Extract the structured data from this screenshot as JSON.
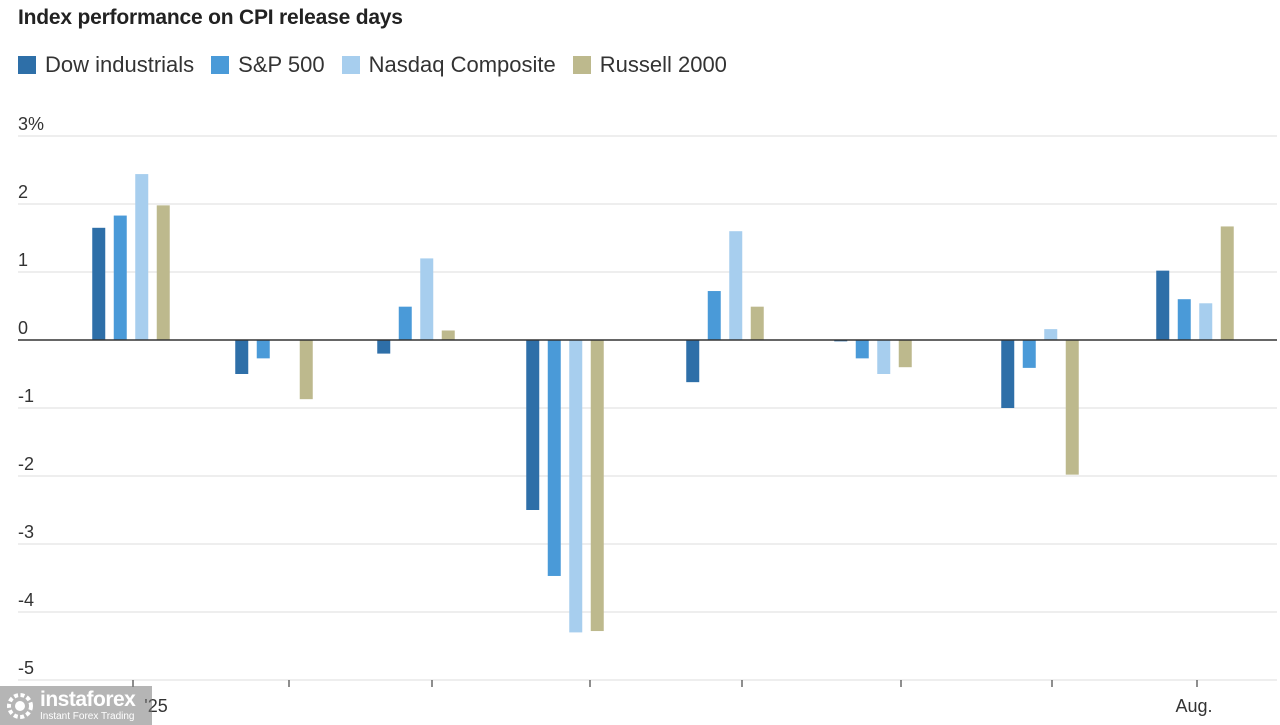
{
  "chart_data": {
    "type": "bar",
    "title": "Index performance on CPI release days",
    "xlabel": "",
    "ylabel": "",
    "ylim": [
      -5,
      3
    ],
    "yticks": [
      {
        "value": 3,
        "label": "3%"
      },
      {
        "value": 2,
        "label": "2"
      },
      {
        "value": 1,
        "label": "1"
      },
      {
        "value": 0,
        "label": "0"
      },
      {
        "value": -1,
        "label": "-1"
      },
      {
        "value": -2,
        "label": "-2"
      },
      {
        "value": -3,
        "label": "-3"
      },
      {
        "value": -4,
        "label": "-4"
      },
      {
        "value": -5,
        "label": "-5"
      }
    ],
    "categories": [
      "'25",
      "",
      "",
      "",
      "",
      "",
      "",
      "Aug."
    ],
    "series": [
      {
        "name": "Dow industrials",
        "color": "#2e6fa8",
        "values": [
          1.65,
          -0.5,
          -0.2,
          -2.5,
          -0.62,
          -0.02,
          -1.0,
          1.02
        ]
      },
      {
        "name": "S&P 500",
        "color": "#4a9ad8",
        "values": [
          1.83,
          -0.27,
          0.49,
          -3.47,
          0.72,
          -0.27,
          -0.41,
          0.6
        ]
      },
      {
        "name": "Nasdaq Composite",
        "color": "#a7ceee",
        "values": [
          2.44,
          0.0,
          1.2,
          -4.3,
          1.6,
          -0.5,
          0.16,
          0.54
        ]
      },
      {
        "name": "Russell 2000",
        "color": "#bdb98d",
        "values": [
          1.98,
          -0.87,
          0.14,
          -4.28,
          0.49,
          -0.4,
          -1.98,
          1.67
        ]
      }
    ],
    "grid": true,
    "legend_position": "top-left"
  },
  "watermark": {
    "brand": "instaforex",
    "tagline": "Instant Forex Trading"
  }
}
